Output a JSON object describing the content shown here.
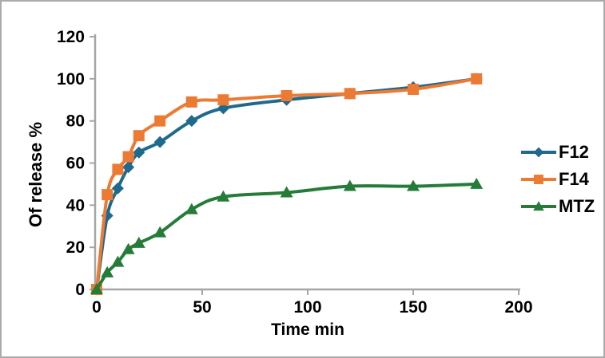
{
  "figure": {
    "background": "#ffffff",
    "border_color": "#ababab"
  },
  "chart_data": {
    "type": "line",
    "title": "",
    "xlabel": "Time min",
    "ylabel": "Of release %",
    "x": [
      0,
      5,
      10,
      15,
      20,
      30,
      45,
      60,
      90,
      120,
      150,
      180
    ],
    "series": [
      {
        "name": "F12",
        "color": "#1f6a8c",
        "marker": "diamond",
        "values": [
          0,
          35,
          48,
          58,
          65,
          70,
          80,
          86,
          90,
          93,
          96,
          100
        ]
      },
      {
        "name": "F14",
        "color": "#ed7a33",
        "marker": "square",
        "values": [
          0,
          45,
          57,
          63,
          73,
          80,
          89,
          90,
          92,
          93,
          95,
          100
        ]
      },
      {
        "name": "MTZ",
        "color": "#257c39",
        "marker": "triangle",
        "values": [
          0,
          8,
          13,
          19,
          22,
          27,
          38,
          44,
          46,
          49,
          49,
          50
        ]
      }
    ],
    "xlim": [
      0,
      200
    ],
    "ylim": [
      0,
      120
    ],
    "x_ticks": [
      0,
      50,
      100,
      150,
      200
    ],
    "y_ticks": [
      0,
      20,
      40,
      60,
      80,
      100,
      120
    ],
    "grid": false,
    "legend_position": "right",
    "axis_color": "#a6a6a6",
    "text_color": "#000000",
    "smooth_lines": true
  }
}
